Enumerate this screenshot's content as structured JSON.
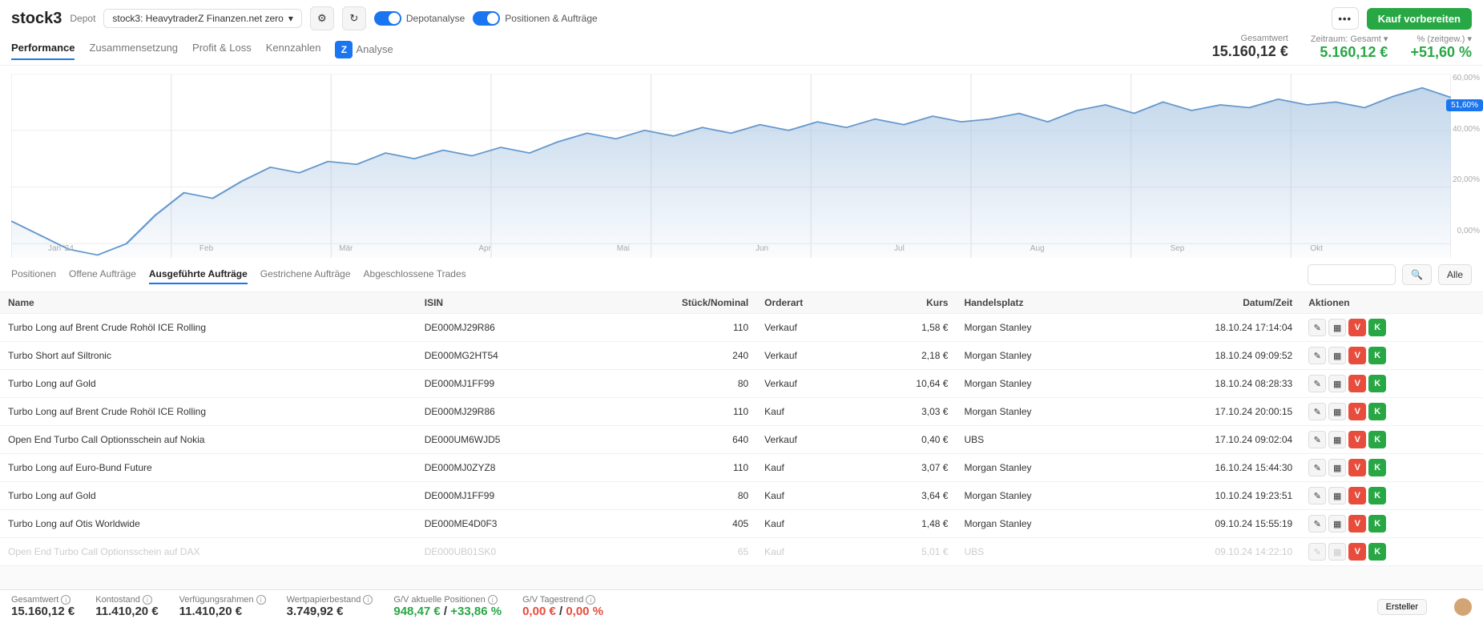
{
  "header": {
    "logo": "stock3",
    "depot_label": "Depot",
    "depot_name": "stock3: HeavytraderZ Finanzen.net zero",
    "toggle1_label": "Depotanalyse",
    "toggle2_label": "Positionen & Aufträge",
    "buy_label": "Kauf vorbereiten"
  },
  "nav": {
    "tabs": [
      "Performance",
      "Zusammensetzung",
      "Profit & Loss",
      "Kennzahlen"
    ],
    "analyse_label": "Analyse",
    "active": 0
  },
  "stats": {
    "gesamtwert_label": "Gesamtwert",
    "gesamtwert": "15.160,12 €",
    "zeitraum_label": "Zeitraum: Gesamt ▾",
    "zeitraum": "5.160,12 €",
    "pct_label": "% (zeitgew.) ▾",
    "pct": "+51,60 %"
  },
  "chart": {
    "y_ticks": [
      "60,00%",
      "40,00%",
      "20,00%",
      "0,00%"
    ],
    "x_ticks": [
      "Jan '24",
      "Feb",
      "Mär",
      "Apr",
      "Mai",
      "Jun",
      "Jul",
      "Aug",
      "Sep",
      "Okt"
    ],
    "current_tag": "51,60%",
    "line_color": "#6699cc",
    "fill_color": "#a8c5e2",
    "grid_color": "#eeeeee",
    "points": [
      [
        0,
        8
      ],
      [
        2,
        3
      ],
      [
        4,
        -2
      ],
      [
        6,
        -4
      ],
      [
        8,
        0
      ],
      [
        10,
        10
      ],
      [
        12,
        18
      ],
      [
        14,
        16
      ],
      [
        16,
        22
      ],
      [
        18,
        27
      ],
      [
        20,
        25
      ],
      [
        22,
        29
      ],
      [
        24,
        28
      ],
      [
        26,
        32
      ],
      [
        28,
        30
      ],
      [
        30,
        33
      ],
      [
        32,
        31
      ],
      [
        34,
        34
      ],
      [
        36,
        32
      ],
      [
        38,
        36
      ],
      [
        40,
        39
      ],
      [
        42,
        37
      ],
      [
        44,
        40
      ],
      [
        46,
        38
      ],
      [
        48,
        41
      ],
      [
        50,
        39
      ],
      [
        52,
        42
      ],
      [
        54,
        40
      ],
      [
        56,
        43
      ],
      [
        58,
        41
      ],
      [
        60,
        44
      ],
      [
        62,
        42
      ],
      [
        64,
        45
      ],
      [
        66,
        43
      ],
      [
        68,
        44
      ],
      [
        70,
        46
      ],
      [
        72,
        43
      ],
      [
        74,
        47
      ],
      [
        76,
        49
      ],
      [
        78,
        46
      ],
      [
        80,
        50
      ],
      [
        82,
        47
      ],
      [
        84,
        49
      ],
      [
        86,
        48
      ],
      [
        88,
        51
      ],
      [
        90,
        49
      ],
      [
        92,
        50
      ],
      [
        94,
        48
      ],
      [
        96,
        52
      ],
      [
        98,
        55
      ],
      [
        100,
        51.6
      ]
    ]
  },
  "sub_tabs": {
    "items": [
      "Positionen",
      "Offene Aufträge",
      "Ausgeführte Aufträge",
      "Gestrichene Aufträge",
      "Abgeschlossene Trades"
    ],
    "active": 2,
    "alle_label": "Alle"
  },
  "table": {
    "headers": [
      "Name",
      "ISIN",
      "Stück/Nominal",
      "Orderart",
      "Kurs",
      "Handelsplatz",
      "Datum/Zeit",
      "Aktionen"
    ],
    "rows": [
      {
        "name": "Turbo Long auf Brent Crude Rohöl ICE Rolling",
        "isin": "DE000MJ29R86",
        "stueck": "110",
        "orderart": "Verkauf",
        "kurs": "1,58 €",
        "platz": "Morgan Stanley",
        "zeit": "18.10.24 17:14:04"
      },
      {
        "name": "Turbo Short auf Siltronic",
        "isin": "DE000MG2HT54",
        "stueck": "240",
        "orderart": "Verkauf",
        "kurs": "2,18 €",
        "platz": "Morgan Stanley",
        "zeit": "18.10.24 09:09:52"
      },
      {
        "name": "Turbo Long auf Gold",
        "isin": "DE000MJ1FF99",
        "stueck": "80",
        "orderart": "Verkauf",
        "kurs": "10,64 €",
        "platz": "Morgan Stanley",
        "zeit": "18.10.24 08:28:33"
      },
      {
        "name": "Turbo Long auf Brent Crude Rohöl ICE Rolling",
        "isin": "DE000MJ29R86",
        "stueck": "110",
        "orderart": "Kauf",
        "kurs": "3,03 €",
        "platz": "Morgan Stanley",
        "zeit": "17.10.24 20:00:15"
      },
      {
        "name": "Open End Turbo Call Optionsschein auf Nokia",
        "isin": "DE000UM6WJD5",
        "stueck": "640",
        "orderart": "Verkauf",
        "kurs": "0,40 €",
        "platz": "UBS",
        "zeit": "17.10.24 09:02:04"
      },
      {
        "name": "Turbo Long auf Euro-Bund Future",
        "isin": "DE000MJ0ZYZ8",
        "stueck": "110",
        "orderart": "Kauf",
        "kurs": "3,07 €",
        "platz": "Morgan Stanley",
        "zeit": "16.10.24 15:44:30"
      },
      {
        "name": "Turbo Long auf Gold",
        "isin": "DE000MJ1FF99",
        "stueck": "80",
        "orderart": "Kauf",
        "kurs": "3,64 €",
        "platz": "Morgan Stanley",
        "zeit": "10.10.24 19:23:51"
      },
      {
        "name": "Turbo Long auf Otis Worldwide",
        "isin": "DE000ME4D0F3",
        "stueck": "405",
        "orderart": "Kauf",
        "kurs": "1,48 €",
        "platz": "Morgan Stanley",
        "zeit": "09.10.24 15:55:19"
      }
    ],
    "faded_row": {
      "name": "Open End Turbo Call Optionsschein auf DAX",
      "isin": "DE000UB01SK0",
      "stueck": "65",
      "orderart": "Kauf",
      "kurs": "5,01 €",
      "platz": "UBS",
      "zeit": "09.10.24 14:22:10"
    }
  },
  "footer": {
    "gesamtwert_label": "Gesamtwert",
    "gesamtwert": "15.160,12 €",
    "kontostand_label": "Kontostand",
    "kontostand": "11.410,20 €",
    "verfuegung_label": "Verfügungsrahmen",
    "verfuegung": "11.410,20 €",
    "wertpapier_label": "Wertpapierbestand",
    "wertpapier": "3.749,92 €",
    "gv_pos_label": "G/V aktuelle Positionen",
    "gv_pos_abs": "948,47 €",
    "gv_pos_pct": "+33,86 %",
    "gv_tag_label": "G/V Tagestrend",
    "gv_tag_abs": "0,00 €",
    "gv_tag_pct": "0,00 %",
    "ersteller_label": "Ersteller"
  }
}
